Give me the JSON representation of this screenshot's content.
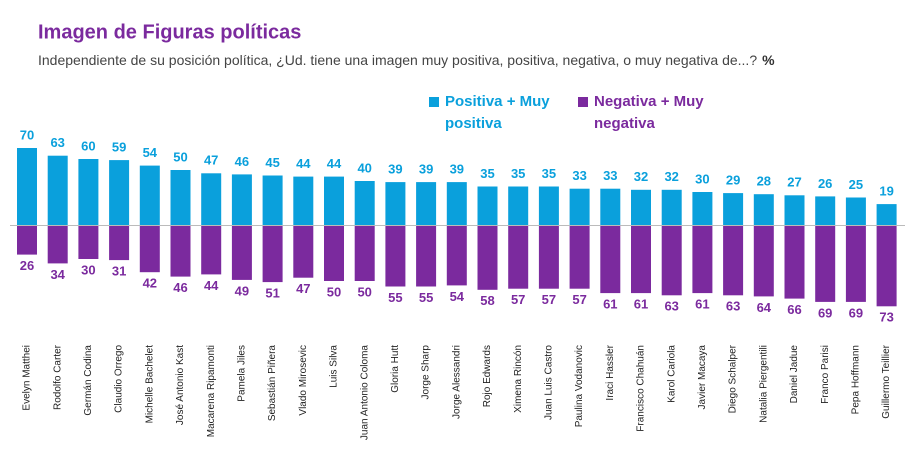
{
  "chart_data": {
    "type": "diverging-bar",
    "title": "Imagen de Figuras políticas",
    "subtitle": "Independiente de su posición política, ¿Ud. tiene una imagen muy positiva, positiva, negativa, o muy negativa de...?",
    "unit": "%",
    "categories": [
      "Evelyn Matthei",
      "Rodolfo Carter",
      "Germán Codina",
      "Claudio Orrego",
      "Michelle Bachelet",
      "José Antonio Kast",
      "Macarena Ripamonti",
      "Pamela Jiles",
      "Sebastián Piñera",
      "Vlado Mirosevic",
      "Luis Silva",
      "Juan Antonio Coloma",
      "Gloria Hutt",
      "Jorge Sharp",
      "Jorge Alessandri",
      "Rojo Edwards",
      "Ximena Rincón",
      "Juan Luis Castro",
      "Paulina Vodanovic",
      "Iraci Hassler",
      "Francisco Chahuán",
      "Karol Cariola",
      "Javier Macaya",
      "Diego Schalper",
      "Natalia Piergentili",
      "Daniel Jadue",
      "Franco Parisi",
      "Pepa Hoffmann",
      "Guillermo Teillier"
    ],
    "series": [
      {
        "name": "Positiva + Muy positiva",
        "color": "#0aa0dc",
        "direction": "up",
        "values": [
          70,
          63,
          60,
          59,
          54,
          50,
          47,
          46,
          45,
          44,
          44,
          40,
          39,
          39,
          39,
          35,
          35,
          35,
          33,
          33,
          32,
          32,
          30,
          29,
          28,
          27,
          26,
          25,
          19
        ]
      },
      {
        "name": "Negativa + Muy negativa",
        "color": "#7b2a9e",
        "direction": "down",
        "values": [
          26,
          34,
          30,
          31,
          42,
          46,
          44,
          49,
          51,
          47,
          50,
          50,
          55,
          55,
          54,
          58,
          57,
          57,
          57,
          61,
          61,
          63,
          61,
          63,
          64,
          66,
          69,
          69,
          73
        ]
      }
    ]
  }
}
